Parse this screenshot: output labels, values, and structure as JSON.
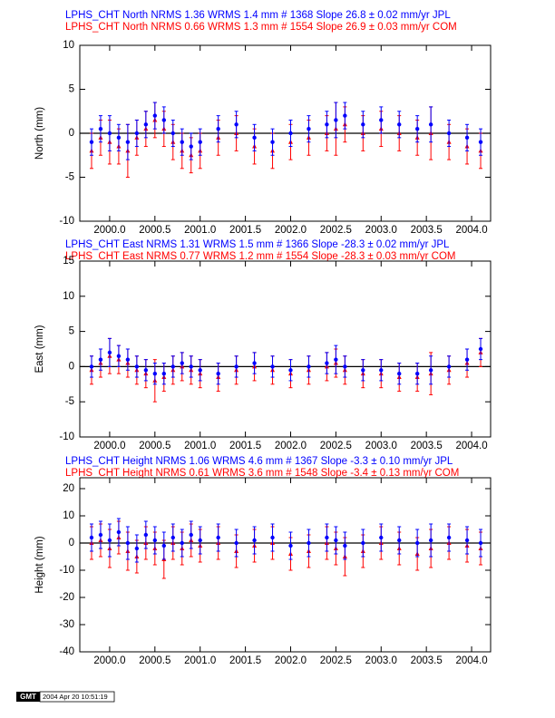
{
  "chart_data": [
    {
      "type": "scatter",
      "ylabel": "North (mm)",
      "xlim": [
        1999.67,
        2004.21
      ],
      "ylim": [
        -10,
        10
      ],
      "xticks": [
        {
          "value": 2000,
          "label": "2000.0"
        },
        2000.5,
        {
          "value": 2001,
          "label": "2001.0"
        },
        2001.5,
        {
          "value": 2002,
          "label": "2002.0"
        },
        2002.5,
        {
          "value": 2003,
          "label": "2003.0"
        },
        2003.5,
        {
          "value": 2004,
          "label": "2004.0"
        }
      ],
      "yticks": [
        -10,
        -5,
        0,
        5,
        10
      ],
      "x": [
        1999.8,
        1999.9,
        2000.0,
        2000.1,
        2000.2,
        2000.3,
        2000.4,
        2000.5,
        2000.6,
        2000.7,
        2000.8,
        2000.9,
        2001.0,
        2001.2,
        2001.4,
        2001.6,
        2001.8,
        2002.0,
        2002.2,
        2002.4,
        2002.5,
        2002.6,
        2002.8,
        2003.0,
        2003.2,
        2003.4,
        2003.55,
        2003.75,
        2003.95,
        2004.1
      ],
      "series": [
        {
          "name": "LPHS_CHT North NRMS 1.36 WRMS  1.4 mm # 1368 Slope   26.8 ±  0.02 mm/yr JPL",
          "color": "#0000ff",
          "values": [
            -1,
            0.5,
            0,
            -0.5,
            -1,
            0,
            1,
            2,
            1.5,
            0,
            -1,
            -1.5,
            -1,
            0.5,
            1,
            -0.5,
            -1,
            0,
            0.5,
            1,
            1.5,
            2,
            1,
            1.5,
            1,
            0.5,
            1,
            0,
            -0.5,
            -1
          ],
          "errors": [
            1.5,
            1.5,
            2,
            1.5,
            2,
            1.5,
            1.5,
            1.5,
            1.5,
            1.5,
            1.5,
            1.5,
            1.5,
            1.5,
            1.5,
            1.5,
            1.5,
            1.5,
            1.5,
            1.5,
            2,
            1.5,
            1.5,
            1.5,
            1.5,
            1.5,
            2,
            1.5,
            1.5,
            1.5
          ]
        },
        {
          "name": "LPHS_CHT North NRMS 0.66 WRMS  1.3 mm # 1554 Slope   26.9 ±  0.03 mm/yr COM",
          "color": "#ff0000",
          "values": [
            -2,
            -0.5,
            -1,
            -1.5,
            -2,
            -0.5,
            0.5,
            1.5,
            0.5,
            -1,
            -2,
            -2.5,
            -2,
            -0.5,
            0,
            -1.5,
            -2,
            -1,
            -0.5,
            0,
            0.5,
            1,
            0,
            0.5,
            0,
            -0.5,
            0,
            -1,
            -1.5,
            -2
          ],
          "errors": [
            2,
            2,
            2.5,
            2,
            3,
            2,
            2,
            2,
            2,
            2,
            2,
            2,
            2,
            2,
            2,
            2,
            2,
            2,
            2,
            2,
            3,
            2,
            2,
            2,
            2,
            2,
            3,
            2,
            2,
            2
          ]
        }
      ]
    },
    {
      "type": "scatter",
      "ylabel": "East (mm)",
      "xlim": [
        1999.67,
        2004.21
      ],
      "ylim": [
        -10,
        15
      ],
      "xticks": [
        {
          "value": 2000,
          "label": "2000.0"
        },
        2000.5,
        {
          "value": 2001,
          "label": "2001.0"
        },
        2001.5,
        {
          "value": 2002,
          "label": "2002.0"
        },
        2002.5,
        {
          "value": 2003,
          "label": "2003.0"
        },
        2003.5,
        {
          "value": 2004,
          "label": "2004.0"
        }
      ],
      "yticks": [
        -10,
        -5,
        0,
        5,
        10,
        15
      ],
      "x": [
        1999.8,
        1999.9,
        2000.0,
        2000.1,
        2000.2,
        2000.3,
        2000.4,
        2000.5,
        2000.6,
        2000.7,
        2000.8,
        2000.9,
        2001.0,
        2001.2,
        2001.4,
        2001.6,
        2001.8,
        2002.0,
        2002.2,
        2002.4,
        2002.5,
        2002.6,
        2002.8,
        2003.0,
        2003.2,
        2003.4,
        2003.55,
        2003.75,
        2003.95,
        2004.1
      ],
      "series": [
        {
          "name": "LPHS_CHT East NRMS 1.31 WRMS  1.5 mm # 1366 Slope  -28.3 ±  0.02 mm/yr JPL",
          "color": "#0000ff",
          "values": [
            0,
            1,
            2,
            1.5,
            1,
            0,
            -0.5,
            -1,
            -1,
            0,
            0.5,
            0,
            -0.5,
            -1,
            0,
            0.5,
            0,
            -0.5,
            0,
            0.5,
            1,
            0,
            -0.5,
            -0.5,
            -1,
            -1,
            -0.5,
            0,
            1,
            2.5
          ],
          "errors": [
            1.5,
            1.5,
            2,
            1.5,
            1.5,
            1.5,
            1.5,
            1.5,
            1.5,
            1.5,
            1.5,
            1.5,
            1.5,
            1.5,
            1.5,
            1.5,
            1.5,
            1.5,
            1.5,
            1.5,
            2,
            1.5,
            1.5,
            1.5,
            1.5,
            1.5,
            2,
            1.5,
            1.5,
            1.5
          ]
        },
        {
          "name": "LPHS_CHT East NRMS 0.77 WRMS  1.2 mm # 1554 Slope  -28.3 ±  0.03 mm/yr COM",
          "color": "#ff0000",
          "values": [
            -0.5,
            0.5,
            1.5,
            1,
            0.5,
            -0.5,
            -1,
            -2,
            -1.5,
            -0.5,
            0,
            -0.5,
            -1,
            -1.5,
            -0.5,
            0,
            -0.5,
            -1,
            -0.5,
            0,
            0.5,
            -0.5,
            -1,
            -1,
            -1.5,
            -1.5,
            -1,
            -0.5,
            0.5,
            2
          ],
          "errors": [
            2,
            2,
            2.5,
            2,
            2,
            2,
            2,
            3,
            2,
            2,
            2,
            2,
            2,
            2,
            2,
            2,
            2,
            2,
            2,
            2,
            2,
            2,
            2,
            2,
            2,
            2,
            3,
            2,
            2,
            2
          ]
        }
      ]
    },
    {
      "type": "scatter",
      "ylabel": "Height (mm)",
      "xlim": [
        1999.67,
        2004.21
      ],
      "ylim": [
        -40,
        24
      ],
      "xticks": [
        {
          "value": 2000,
          "label": "2000.0"
        },
        2000.5,
        {
          "value": 2001,
          "label": "2001.0"
        },
        2001.5,
        {
          "value": 2002,
          "label": "2002.0"
        },
        2002.5,
        {
          "value": 2003,
          "label": "2003.0"
        },
        2003.5,
        {
          "value": 2004,
          "label": "2004.0"
        }
      ],
      "yticks": [
        -40,
        -30,
        -20,
        -10,
        0,
        10,
        20
      ],
      "x": [
        1999.8,
        1999.9,
        2000.0,
        2000.1,
        2000.2,
        2000.3,
        2000.4,
        2000.5,
        2000.6,
        2000.7,
        2000.8,
        2000.9,
        2001.0,
        2001.2,
        2001.4,
        2001.6,
        2001.8,
        2002.0,
        2002.2,
        2002.4,
        2002.5,
        2002.6,
        2002.8,
        2003.0,
        2003.2,
        2003.4,
        2003.55,
        2003.75,
        2003.95,
        2004.1
      ],
      "series": [
        {
          "name": "LPHS_CHT Height NRMS 1.06 WRMS  4.6 mm # 1367 Slope   -3.3 ±  0.10 mm/yr JPL",
          "color": "#0000ff",
          "values": [
            2,
            3,
            1,
            4,
            0,
            -2,
            3,
            1,
            -1,
            2,
            0,
            3,
            1,
            2,
            0,
            1,
            2,
            -1,
            0,
            2,
            1,
            -1,
            0,
            2,
            1,
            0,
            1,
            2,
            1,
            0
          ],
          "errors": [
            5,
            5,
            6,
            5,
            6,
            5,
            5,
            5,
            5,
            5,
            5,
            5,
            5,
            5,
            5,
            5,
            5,
            5,
            5,
            5,
            5,
            5,
            5,
            5,
            5,
            5,
            6,
            5,
            5,
            5
          ]
        },
        {
          "name": "LPHS_CHT Height NRMS 0.61 WRMS  3.6 mm # 1548 Slope   -3.4 ±  0.13 mm/yr COM",
          "color": "#ff0000",
          "values": [
            0,
            1,
            -2,
            2,
            -3,
            -5,
            0,
            -2,
            -6,
            0,
            -2,
            1,
            -1,
            0,
            -3,
            -1,
            0,
            -4,
            -3,
            0,
            -2,
            -5,
            -3,
            0,
            -2,
            -4,
            -2,
            0,
            -1,
            -2
          ],
          "errors": [
            6,
            6,
            7,
            6,
            7,
            6,
            6,
            6,
            7,
            6,
            6,
            6,
            6,
            6,
            6,
            6,
            6,
            6,
            6,
            6,
            6,
            7,
            6,
            6,
            6,
            6,
            7,
            6,
            6,
            6
          ]
        }
      ]
    }
  ],
  "footer": {
    "logo": "GMT",
    "timestamp": "2004 Apr 20 10:51:19"
  }
}
